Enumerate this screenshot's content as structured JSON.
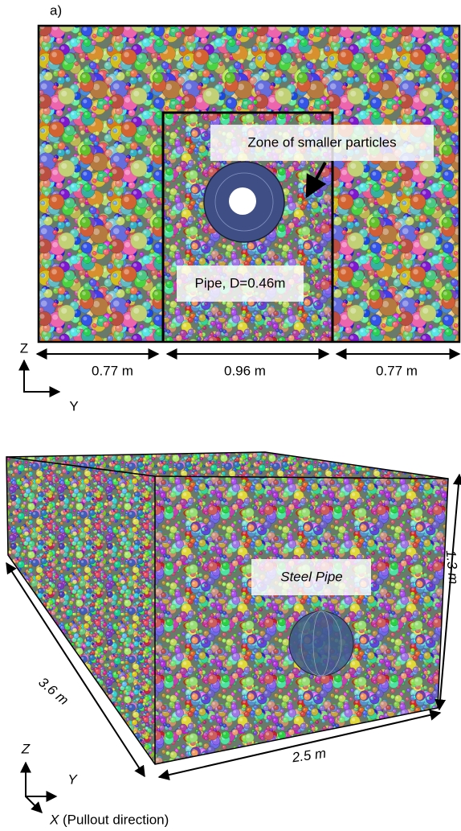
{
  "panel_label": "a)",
  "top": {
    "zone_label": "Zone of smaller particles",
    "pipe_label": "Pipe, D=0.46m",
    "dimensions": [
      "0.77 m",
      "0.96 m",
      "0.77 m"
    ],
    "axes": {
      "z": "Z",
      "y": "Y"
    }
  },
  "bottom": {
    "pipe_label": "Steel Pipe",
    "dimensions": {
      "height": "1.3 m",
      "depth": "3.6 m",
      "width": "2.5 m"
    },
    "axes": {
      "z": "Z",
      "y": "Y",
      "x": "X",
      "x_note": "(Pullout direction)"
    }
  }
}
